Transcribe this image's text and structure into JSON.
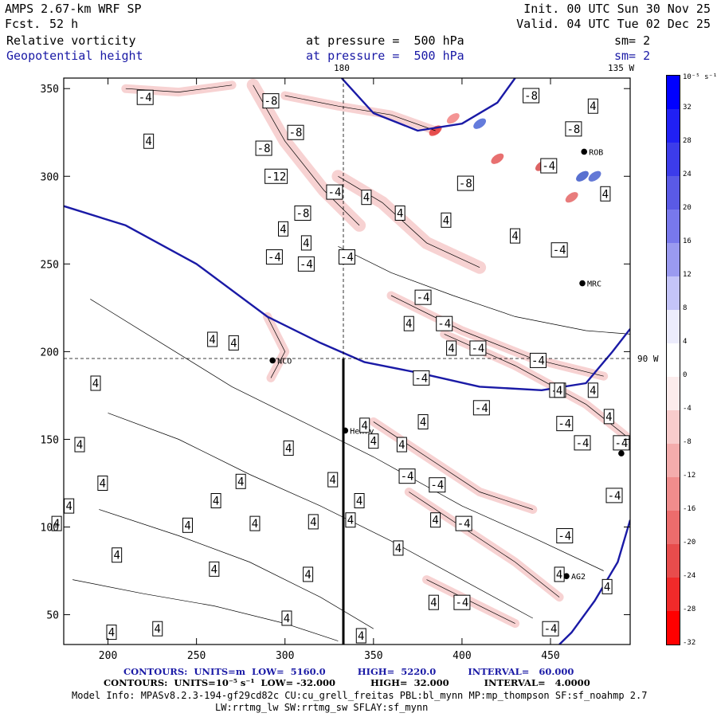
{
  "header": {
    "title": "AMPS 2.67-km WRF SP",
    "forecast_label": "Fcst.",
    "forecast_value": "52 h",
    "init": "Init. 00 UTC Sun 30 Nov 25",
    "valid": "Valid. 04 UTC Tue 02 Dec 25",
    "field1": {
      "name": "Relative vorticity",
      "level": "at pressure =  500 hPa",
      "smooth": "sm= 2"
    },
    "field2": {
      "name": "Geopotential height",
      "level": "at pressure =  500 hPa",
      "smooth": "sm= 2"
    }
  },
  "map_labels": {
    "meridian_180": "180",
    "meridian_135": "135 W",
    "meridian_90": "90 W"
  },
  "stations": [
    {
      "name": "NCO",
      "x": 293,
      "y": 195
    },
    {
      "name": "Henry",
      "x": 334,
      "y": 155
    },
    {
      "name": "MRC",
      "x": 468,
      "y": 239
    },
    {
      "name": "ROB",
      "x": 469,
      "y": 314
    },
    {
      "name": "AG2",
      "x": 459,
      "y": 72
    },
    {
      "name": "",
      "x": 490,
      "y": 142
    }
  ],
  "colorbar": {
    "unit": "10⁻⁵ s⁻¹",
    "ticks": [
      "32",
      "28",
      "24",
      "20",
      "16",
      "12",
      "8",
      "4",
      "0",
      "-4",
      "-8",
      "-12",
      "-16",
      "-20",
      "-24",
      "-28",
      "-32"
    ],
    "colors": [
      "#0000ff",
      "#2020f4",
      "#3c3cea",
      "#5a5ae6",
      "#7878ec",
      "#9a9af0",
      "#c4c4f8",
      "#ececfc",
      "#ffffff",
      "#fcecec",
      "#f8cccc",
      "#f4acac",
      "#f08c8c",
      "#ec6c6c",
      "#e84c4c",
      "#f02a2a",
      "#ff0000"
    ]
  },
  "chart_data": {
    "type": "contour-map",
    "xlim": [
      175,
      495
    ],
    "ylim": [
      33,
      356
    ],
    "xticks": [
      200,
      250,
      300,
      350,
      400,
      450
    ],
    "yticks": [
      50,
      100,
      150,
      200,
      250,
      300,
      350
    ],
    "height_contours": [
      {
        "level_m": 5220,
        "points": [
          [
            175,
            283
          ],
          [
            210,
            272
          ],
          [
            250,
            250
          ],
          [
            290,
            220
          ],
          [
            320,
            205
          ],
          [
            345,
            194
          ],
          [
            375,
            188
          ],
          [
            410,
            180
          ],
          [
            445,
            178
          ],
          [
            470,
            182
          ],
          [
            485,
            200
          ],
          [
            495,
            213
          ]
        ]
      },
      {
        "level_m": 5220,
        "points": [
          [
            332,
            356
          ],
          [
            350,
            336
          ],
          [
            375,
            326
          ],
          [
            400,
            330
          ],
          [
            420,
            342
          ],
          [
            430,
            356
          ]
        ]
      },
      {
        "level_m": 5220,
        "points": [
          [
            495,
            104
          ],
          [
            488,
            80
          ],
          [
            475,
            58
          ],
          [
            462,
            40
          ],
          [
            455,
            33
          ]
        ]
      }
    ],
    "vorticity_labels": [
      {
        "v": -4,
        "x": 221,
        "y": 345
      },
      {
        "v": -8,
        "x": 292,
        "y": 343
      },
      {
        "v": -8,
        "x": 439,
        "y": 346
      },
      {
        "v": 4,
        "x": 474,
        "y": 340
      },
      {
        "v": -8,
        "x": 306,
        "y": 325
      },
      {
        "v": -8,
        "x": 463,
        "y": 327
      },
      {
        "v": 4,
        "x": 223,
        "y": 320
      },
      {
        "v": -8,
        "x": 288,
        "y": 316
      },
      {
        "v": -12,
        "x": 295,
        "y": 300
      },
      {
        "v": -4,
        "x": 328,
        "y": 291
      },
      {
        "v": 4,
        "x": 346,
        "y": 288
      },
      {
        "v": -8,
        "x": 402,
        "y": 296
      },
      {
        "v": -4,
        "x": 449,
        "y": 306
      },
      {
        "v": 4,
        "x": 481,
        "y": 290
      },
      {
        "v": -8,
        "x": 310,
        "y": 279
      },
      {
        "v": 4,
        "x": 299,
        "y": 270
      },
      {
        "v": 4,
        "x": 312,
        "y": 262
      },
      {
        "v": 4,
        "x": 365,
        "y": 279
      },
      {
        "v": 4,
        "x": 391,
        "y": 275
      },
      {
        "v": 4,
        "x": 430,
        "y": 266
      },
      {
        "v": -4,
        "x": 294,
        "y": 254
      },
      {
        "v": -4,
        "x": 312,
        "y": 250
      },
      {
        "v": -4,
        "x": 335,
        "y": 254
      },
      {
        "v": -4,
        "x": 455,
        "y": 258
      },
      {
        "v": -4,
        "x": 378,
        "y": 231
      },
      {
        "v": 4,
        "x": 370,
        "y": 216
      },
      {
        "v": -4,
        "x": 390,
        "y": 216
      },
      {
        "v": 4,
        "x": 394,
        "y": 202
      },
      {
        "v": -4,
        "x": 409,
        "y": 202
      },
      {
        "v": -4,
        "x": 443,
        "y": 195
      },
      {
        "v": 4,
        "x": 259,
        "y": 207
      },
      {
        "v": 4,
        "x": 271,
        "y": 205
      },
      {
        "v": -4,
        "x": 377,
        "y": 185
      },
      {
        "v": 4,
        "x": 193,
        "y": 182
      },
      {
        "v": -4,
        "x": 454,
        "y": 178
      },
      {
        "v": -4,
        "x": 411,
        "y": 168
      },
      {
        "v": 4,
        "x": 455,
        "y": 178
      },
      {
        "v": 4,
        "x": 474,
        "y": 178
      },
      {
        "v": 4,
        "x": 345,
        "y": 158
      },
      {
        "v": 4,
        "x": 378,
        "y": 160
      },
      {
        "v": 4,
        "x": 483,
        "y": 163
      },
      {
        "v": -4,
        "x": 458,
        "y": 159
      },
      {
        "v": -4,
        "x": 468,
        "y": 148
      },
      {
        "v": -4,
        "x": 490,
        "y": 148
      },
      {
        "v": 4,
        "x": 184,
        "y": 147
      },
      {
        "v": 4,
        "x": 302,
        "y": 145
      },
      {
        "v": 4,
        "x": 350,
        "y": 149
      },
      {
        "v": 4,
        "x": 366,
        "y": 147
      },
      {
        "v": -4,
        "x": 369,
        "y": 129
      },
      {
        "v": -4,
        "x": 386,
        "y": 124
      },
      {
        "v": 4,
        "x": 197,
        "y": 125
      },
      {
        "v": 4,
        "x": 275,
        "y": 126
      },
      {
        "v": 4,
        "x": 327,
        "y": 127
      },
      {
        "v": 4,
        "x": 342,
        "y": 115
      },
      {
        "v": -4,
        "x": 486,
        "y": 118
      },
      {
        "v": 4,
        "x": 178,
        "y": 112
      },
      {
        "v": 4,
        "x": 261,
        "y": 115
      },
      {
        "v": 4,
        "x": 283,
        "y": 102
      },
      {
        "v": 4,
        "x": 316,
        "y": 103
      },
      {
        "v": 4,
        "x": 385,
        "y": 104
      },
      {
        "v": -4,
        "x": 401,
        "y": 102
      },
      {
        "v": 4,
        "x": 171,
        "y": 102
      },
      {
        "v": 4,
        "x": 245,
        "y": 101
      },
      {
        "v": 4,
        "x": 337,
        "y": 104
      },
      {
        "v": 4,
        "x": 364,
        "y": 88
      },
      {
        "v": 4,
        "x": 205,
        "y": 84
      },
      {
        "v": 4,
        "x": 260,
        "y": 76
      },
      {
        "v": 4,
        "x": 313,
        "y": 73
      },
      {
        "v": -4,
        "x": 458,
        "y": 95
      },
      {
        "v": 4,
        "x": 455,
        "y": 73
      },
      {
        "v": 4,
        "x": 384,
        "y": 57
      },
      {
        "v": -4,
        "x": 400,
        "y": 57
      },
      {
        "v": 4,
        "x": 482,
        "y": 66
      },
      {
        "v": 4,
        "x": 301,
        "y": 48
      },
      {
        "v": 4,
        "x": 202,
        "y": 40
      },
      {
        "v": 4,
        "x": 228,
        "y": 42
      },
      {
        "v": -4,
        "x": 450,
        "y": 42
      },
      {
        "v": 4,
        "x": 343,
        "y": 38
      }
    ]
  },
  "footer": {
    "line1": "CONTOURS:  UNITS=m  LOW=  5160.0          HIGH=  5220.0          INTERVAL=   60.000",
    "line2": "CONTOURS:  UNITS=10⁻⁵ s⁻¹  LOW= -32.000           HIGH=  32.000           INTERVAL=   4.0000",
    "line3": "Model Info: MPASv8.2.3-194-gf29cd82c CU:cu_grell_freitas PBL:bl_mynn MP:mp_thompson SF:sf_noahmp 2.7",
    "line4": "LW:rrtmg_lw SW:rrtmg_sw SFLAY:sf_mynn"
  }
}
